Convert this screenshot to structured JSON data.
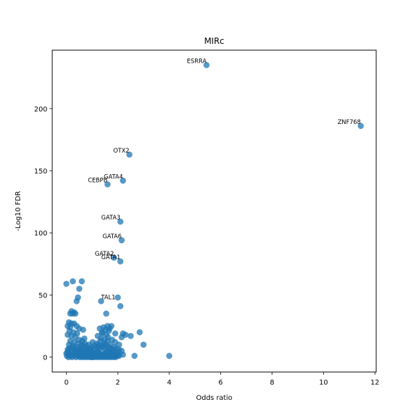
{
  "chart_data": {
    "type": "scatter",
    "title": "MIRc",
    "xlabel": "Odds ratio",
    "ylabel": "-Log10 FDR",
    "xlim": [
      -0.55,
      12.05
    ],
    "ylim": [
      -12,
      247
    ],
    "xticks": [
      0,
      2,
      4,
      6,
      8,
      10,
      12
    ],
    "yticks": [
      0,
      50,
      100,
      150,
      200
    ],
    "grid": false,
    "marker_color": "#1f77b4",
    "marker_alpha": 0.75,
    "labeled_points": [
      {
        "label": "ESRRA",
        "x": 5.45,
        "y": 235,
        "label_anchor": "end"
      },
      {
        "label": "ZNF768",
        "x": 11.45,
        "y": 186,
        "label_anchor": "end"
      },
      {
        "label": "OTX2",
        "x": 2.45,
        "y": 163,
        "label_anchor": "end"
      },
      {
        "label": "GATA4",
        "x": 2.2,
        "y": 142,
        "label_anchor": "end"
      },
      {
        "label": "CEBPB",
        "x": 1.6,
        "y": 139,
        "label_anchor": "end"
      },
      {
        "label": "GATA3",
        "x": 2.1,
        "y": 109,
        "label_anchor": "end"
      },
      {
        "label": "GATA6",
        "x": 2.15,
        "y": 94,
        "label_anchor": "end"
      },
      {
        "label": "GATA2",
        "x": 1.85,
        "y": 80,
        "label_anchor": "end"
      },
      {
        "label": "GATA1",
        "x": 2.1,
        "y": 77,
        "label_anchor": "end"
      },
      {
        "label": "TAL1",
        "x": 1.35,
        "y": 45,
        "label_anchor": "start"
      }
    ],
    "points": [
      [
        0.0,
        59
      ],
      [
        0.25,
        61
      ],
      [
        0.6,
        61
      ],
      [
        0.5,
        55
      ],
      [
        0.45,
        48
      ],
      [
        0.4,
        45
      ],
      [
        2.0,
        48
      ],
      [
        2.1,
        41
      ],
      [
        1.55,
        35
      ],
      [
        0.2,
        37
      ],
      [
        0.15,
        35
      ],
      [
        0.25,
        35
      ],
      [
        0.35,
        35
      ],
      [
        0.3,
        36
      ],
      [
        0.1,
        28
      ],
      [
        0.2,
        27
      ],
      [
        0.3,
        27
      ],
      [
        0.05,
        25
      ],
      [
        0.15,
        24
      ],
      [
        0.4,
        25
      ],
      [
        0.5,
        23
      ],
      [
        0.65,
        22
      ],
      [
        1.3,
        23
      ],
      [
        1.45,
        24
      ],
      [
        1.6,
        25
      ],
      [
        1.75,
        25
      ],
      [
        1.65,
        21
      ],
      [
        1.4,
        19
      ],
      [
        1.9,
        19
      ],
      [
        2.2,
        19
      ],
      [
        2.3,
        18
      ],
      [
        2.5,
        17
      ],
      [
        2.15,
        16
      ],
      [
        2.85,
        20
      ],
      [
        1.55,
        18
      ],
      [
        1.35,
        15
      ],
      [
        1.6,
        13
      ],
      [
        1.9,
        12
      ],
      [
        1.7,
        10
      ],
      [
        2.05,
        10
      ],
      [
        3.0,
        10
      ],
      [
        2.65,
        1
      ],
      [
        4.0,
        1
      ],
      [
        2.2,
        2
      ],
      [
        2.05,
        1
      ],
      [
        1.85,
        2
      ],
      [
        0.05,
        18
      ],
      [
        0.2,
        17
      ],
      [
        0.35,
        16
      ],
      [
        0.5,
        14
      ],
      [
        0.7,
        15
      ],
      [
        0.15,
        13
      ],
      [
        0.3,
        12
      ],
      [
        0.45,
        11
      ],
      [
        0.6,
        10
      ],
      [
        0.1,
        10
      ],
      [
        0.25,
        9
      ],
      [
        0.4,
        8
      ],
      [
        0.55,
        7
      ],
      [
        0.7,
        8
      ],
      [
        0.8,
        6
      ],
      [
        0.9,
        5
      ],
      [
        1.0,
        4
      ],
      [
        1.1,
        6
      ],
      [
        1.2,
        5
      ],
      [
        1.3,
        7
      ],
      [
        1.4,
        8
      ],
      [
        1.5,
        6
      ],
      [
        1.6,
        5
      ],
      [
        1.7,
        4
      ],
      [
        1.8,
        6
      ],
      [
        1.9,
        3
      ],
      [
        2.0,
        4
      ],
      [
        1.25,
        10
      ],
      [
        1.5,
        11
      ],
      [
        1.15,
        3
      ],
      [
        1.05,
        2
      ],
      [
        0.95,
        3
      ],
      [
        0.85,
        2
      ],
      [
        0.75,
        3
      ],
      [
        0.65,
        2
      ],
      [
        0.55,
        3
      ],
      [
        0.45,
        4
      ],
      [
        0.35,
        3
      ],
      [
        0.25,
        4
      ],
      [
        0.15,
        5
      ],
      [
        0.05,
        6
      ],
      [
        0.0,
        3
      ],
      [
        0.02,
        1
      ],
      [
        0.08,
        0
      ],
      [
        0.12,
        2
      ],
      [
        0.18,
        1
      ],
      [
        0.22,
        0
      ],
      [
        0.28,
        2
      ],
      [
        0.32,
        1
      ],
      [
        0.38,
        0
      ],
      [
        0.42,
        2
      ],
      [
        0.48,
        1
      ],
      [
        0.52,
        0
      ],
      [
        0.58,
        1
      ],
      [
        0.62,
        0
      ],
      [
        0.68,
        1
      ],
      [
        0.72,
        0
      ],
      [
        0.78,
        1
      ],
      [
        0.82,
        0
      ],
      [
        0.88,
        1
      ],
      [
        0.92,
        0
      ],
      [
        0.98,
        1
      ],
      [
        1.02,
        0
      ],
      [
        1.08,
        1
      ],
      [
        1.12,
        0
      ],
      [
        1.18,
        1
      ],
      [
        1.22,
        0
      ],
      [
        1.28,
        1
      ],
      [
        1.32,
        0
      ],
      [
        1.38,
        1
      ],
      [
        1.42,
        0
      ],
      [
        1.48,
        1
      ],
      [
        1.52,
        0
      ],
      [
        1.58,
        1
      ],
      [
        1.62,
        0
      ],
      [
        1.68,
        1
      ],
      [
        1.72,
        0
      ],
      [
        1.78,
        1
      ],
      [
        1.82,
        0
      ],
      [
        1.88,
        1
      ],
      [
        1.92,
        0
      ],
      [
        1.98,
        1
      ],
      [
        1.0,
        0
      ],
      [
        0.9,
        1
      ],
      [
        1.1,
        1
      ],
      [
        1.2,
        2
      ],
      [
        1.3,
        3
      ],
      [
        1.4,
        2
      ],
      [
        1.5,
        3
      ],
      [
        1.6,
        2
      ],
      [
        1.7,
        3
      ],
      [
        1.8,
        2
      ],
      [
        1.9,
        1
      ],
      [
        2.0,
        2
      ],
      [
        0.7,
        5
      ],
      [
        0.8,
        4
      ],
      [
        0.6,
        6
      ],
      [
        0.5,
        5
      ],
      [
        0.4,
        6
      ],
      [
        0.3,
        7
      ],
      [
        0.2,
        8
      ],
      [
        0.1,
        7
      ],
      [
        0.9,
        7
      ],
      [
        1.0,
        8
      ],
      [
        1.1,
        9
      ],
      [
        1.2,
        8
      ],
      [
        1.35,
        9
      ],
      [
        1.45,
        10
      ],
      [
        1.55,
        9
      ],
      [
        1.65,
        8
      ],
      [
        1.75,
        7
      ],
      [
        1.85,
        8
      ],
      [
        1.95,
        7
      ],
      [
        2.05,
        6
      ],
      [
        2.15,
        5
      ],
      [
        0.05,
        4
      ],
      [
        0.35,
        5
      ],
      [
        0.65,
        4
      ],
      [
        0.95,
        6
      ],
      [
        1.25,
        4
      ],
      [
        1.55,
        4
      ],
      [
        1.85,
        5
      ],
      [
        0.15,
        2
      ],
      [
        0.45,
        2
      ],
      [
        0.75,
        2
      ],
      [
        1.05,
        3
      ],
      [
        1.35,
        2
      ],
      [
        1.65,
        3
      ],
      [
        1.95,
        2
      ],
      [
        0.58,
        9
      ],
      [
        0.72,
        11
      ],
      [
        0.88,
        10
      ],
      [
        1.02,
        12
      ],
      [
        1.18,
        11
      ],
      [
        1.32,
        13
      ],
      [
        1.48,
        14
      ],
      [
        1.62,
        16
      ],
      [
        1.78,
        14
      ],
      [
        1.22,
        17
      ],
      [
        1.38,
        20
      ],
      [
        1.52,
        22
      ],
      [
        1.68,
        23
      ],
      [
        0.62,
        13
      ],
      [
        0.78,
        9
      ],
      [
        0.12,
        21
      ],
      [
        0.28,
        20
      ],
      [
        0.42,
        19
      ]
    ]
  }
}
